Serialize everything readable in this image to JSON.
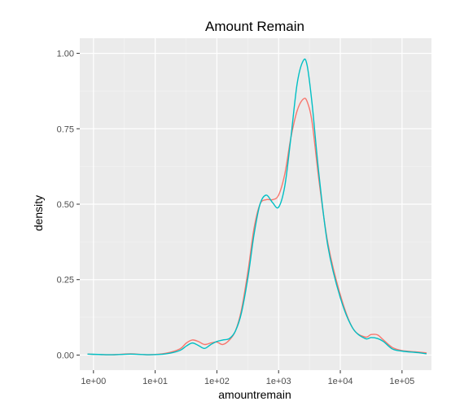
{
  "chart_data": {
    "type": "line",
    "title": "Amount Remain",
    "xlabel": "amountremain",
    "ylabel": "density",
    "x_scale": "log10",
    "xlim": [
      0.6,
      300000
    ],
    "ylim": [
      -0.05,
      1.05
    ],
    "x_ticks": [
      {
        "value": 1,
        "label": "1e+00"
      },
      {
        "value": 10,
        "label": "1e+01"
      },
      {
        "value": 100,
        "label": "1e+02"
      },
      {
        "value": 1000,
        "label": "1e+03"
      },
      {
        "value": 10000,
        "label": "1e+04"
      },
      {
        "value": 100000,
        "label": "1e+05"
      }
    ],
    "y_ticks": [
      {
        "value": 0.0,
        "label": "0.00"
      },
      {
        "value": 0.25,
        "label": "0.25"
      },
      {
        "value": 0.5,
        "label": "0.50"
      },
      {
        "value": 0.75,
        "label": "0.75"
      },
      {
        "value": 1.0,
        "label": "1.00"
      }
    ],
    "grid": true,
    "legend": "none",
    "series": [
      {
        "color": "#F8766D",
        "points": [
          [
            0.8,
            0.003
          ],
          [
            2,
            0.001
          ],
          [
            4,
            0.004
          ],
          [
            8,
            0.001
          ],
          [
            15,
            0.006
          ],
          [
            25,
            0.02
          ],
          [
            32,
            0.04
          ],
          [
            40,
            0.05
          ],
          [
            50,
            0.045
          ],
          [
            63,
            0.035
          ],
          [
            80,
            0.04
          ],
          [
            100,
            0.043
          ],
          [
            125,
            0.035
          ],
          [
            160,
            0.05
          ],
          [
            200,
            0.08
          ],
          [
            250,
            0.15
          ],
          [
            320,
            0.28
          ],
          [
            400,
            0.42
          ],
          [
            500,
            0.5
          ],
          [
            630,
            0.515
          ],
          [
            800,
            0.515
          ],
          [
            1000,
            0.53
          ],
          [
            1260,
            0.6
          ],
          [
            1580,
            0.72
          ],
          [
            2000,
            0.81
          ],
          [
            2500,
            0.848
          ],
          [
            2900,
            0.84
          ],
          [
            3500,
            0.77
          ],
          [
            4500,
            0.58
          ],
          [
            6300,
            0.37
          ],
          [
            10000,
            0.2
          ],
          [
            15800,
            0.09
          ],
          [
            25000,
            0.06
          ],
          [
            31600,
            0.068
          ],
          [
            40000,
            0.067
          ],
          [
            50000,
            0.05
          ],
          [
            70000,
            0.025
          ],
          [
            100000,
            0.015
          ],
          [
            180000,
            0.01
          ],
          [
            250000,
            0.007
          ]
        ]
      },
      {
        "color": "#00BFC4",
        "points": [
          [
            0.8,
            0.003
          ],
          [
            2,
            0.001
          ],
          [
            4,
            0.003
          ],
          [
            8,
            0.001
          ],
          [
            15,
            0.004
          ],
          [
            25,
            0.015
          ],
          [
            32,
            0.03
          ],
          [
            40,
            0.04
          ],
          [
            50,
            0.032
          ],
          [
            63,
            0.022
          ],
          [
            80,
            0.035
          ],
          [
            100,
            0.045
          ],
          [
            125,
            0.05
          ],
          [
            160,
            0.055
          ],
          [
            200,
            0.08
          ],
          [
            250,
            0.14
          ],
          [
            320,
            0.26
          ],
          [
            400,
            0.4
          ],
          [
            500,
            0.5
          ],
          [
            630,
            0.53
          ],
          [
            800,
            0.505
          ],
          [
            1000,
            0.49
          ],
          [
            1260,
            0.56
          ],
          [
            1580,
            0.72
          ],
          [
            2000,
            0.9
          ],
          [
            2500,
            0.975
          ],
          [
            2900,
            0.96
          ],
          [
            3500,
            0.83
          ],
          [
            4500,
            0.6
          ],
          [
            6300,
            0.36
          ],
          [
            10000,
            0.19
          ],
          [
            15800,
            0.09
          ],
          [
            25000,
            0.055
          ],
          [
            31600,
            0.058
          ],
          [
            40000,
            0.055
          ],
          [
            50000,
            0.045
          ],
          [
            70000,
            0.02
          ],
          [
            100000,
            0.013
          ],
          [
            180000,
            0.008
          ],
          [
            250000,
            0.004
          ]
        ]
      }
    ]
  }
}
